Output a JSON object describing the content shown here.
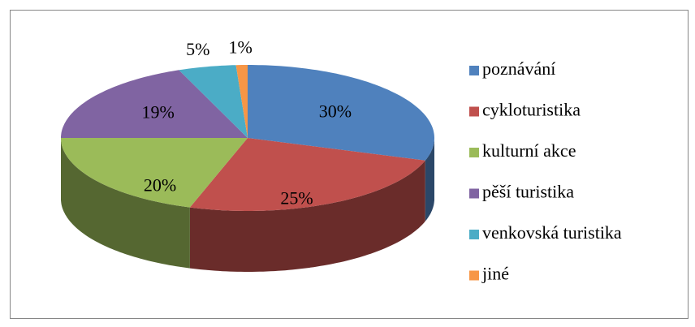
{
  "chart_data": {
    "type": "pie3d",
    "categories": [
      "poznávání",
      "cykloturistika",
      "kulturní akce",
      "pěší turistika",
      "venkovská turistika",
      "jiné"
    ],
    "values": [
      30,
      25,
      20,
      19,
      5,
      1
    ],
    "value_labels": [
      "30%",
      "25%",
      "20%",
      "19%",
      "5%",
      "1%"
    ],
    "colors": [
      "#4F81BD",
      "#C0504D",
      "#9BBB59",
      "#8064A2",
      "#4BACC6",
      "#F79646"
    ],
    "legend": "right"
  }
}
